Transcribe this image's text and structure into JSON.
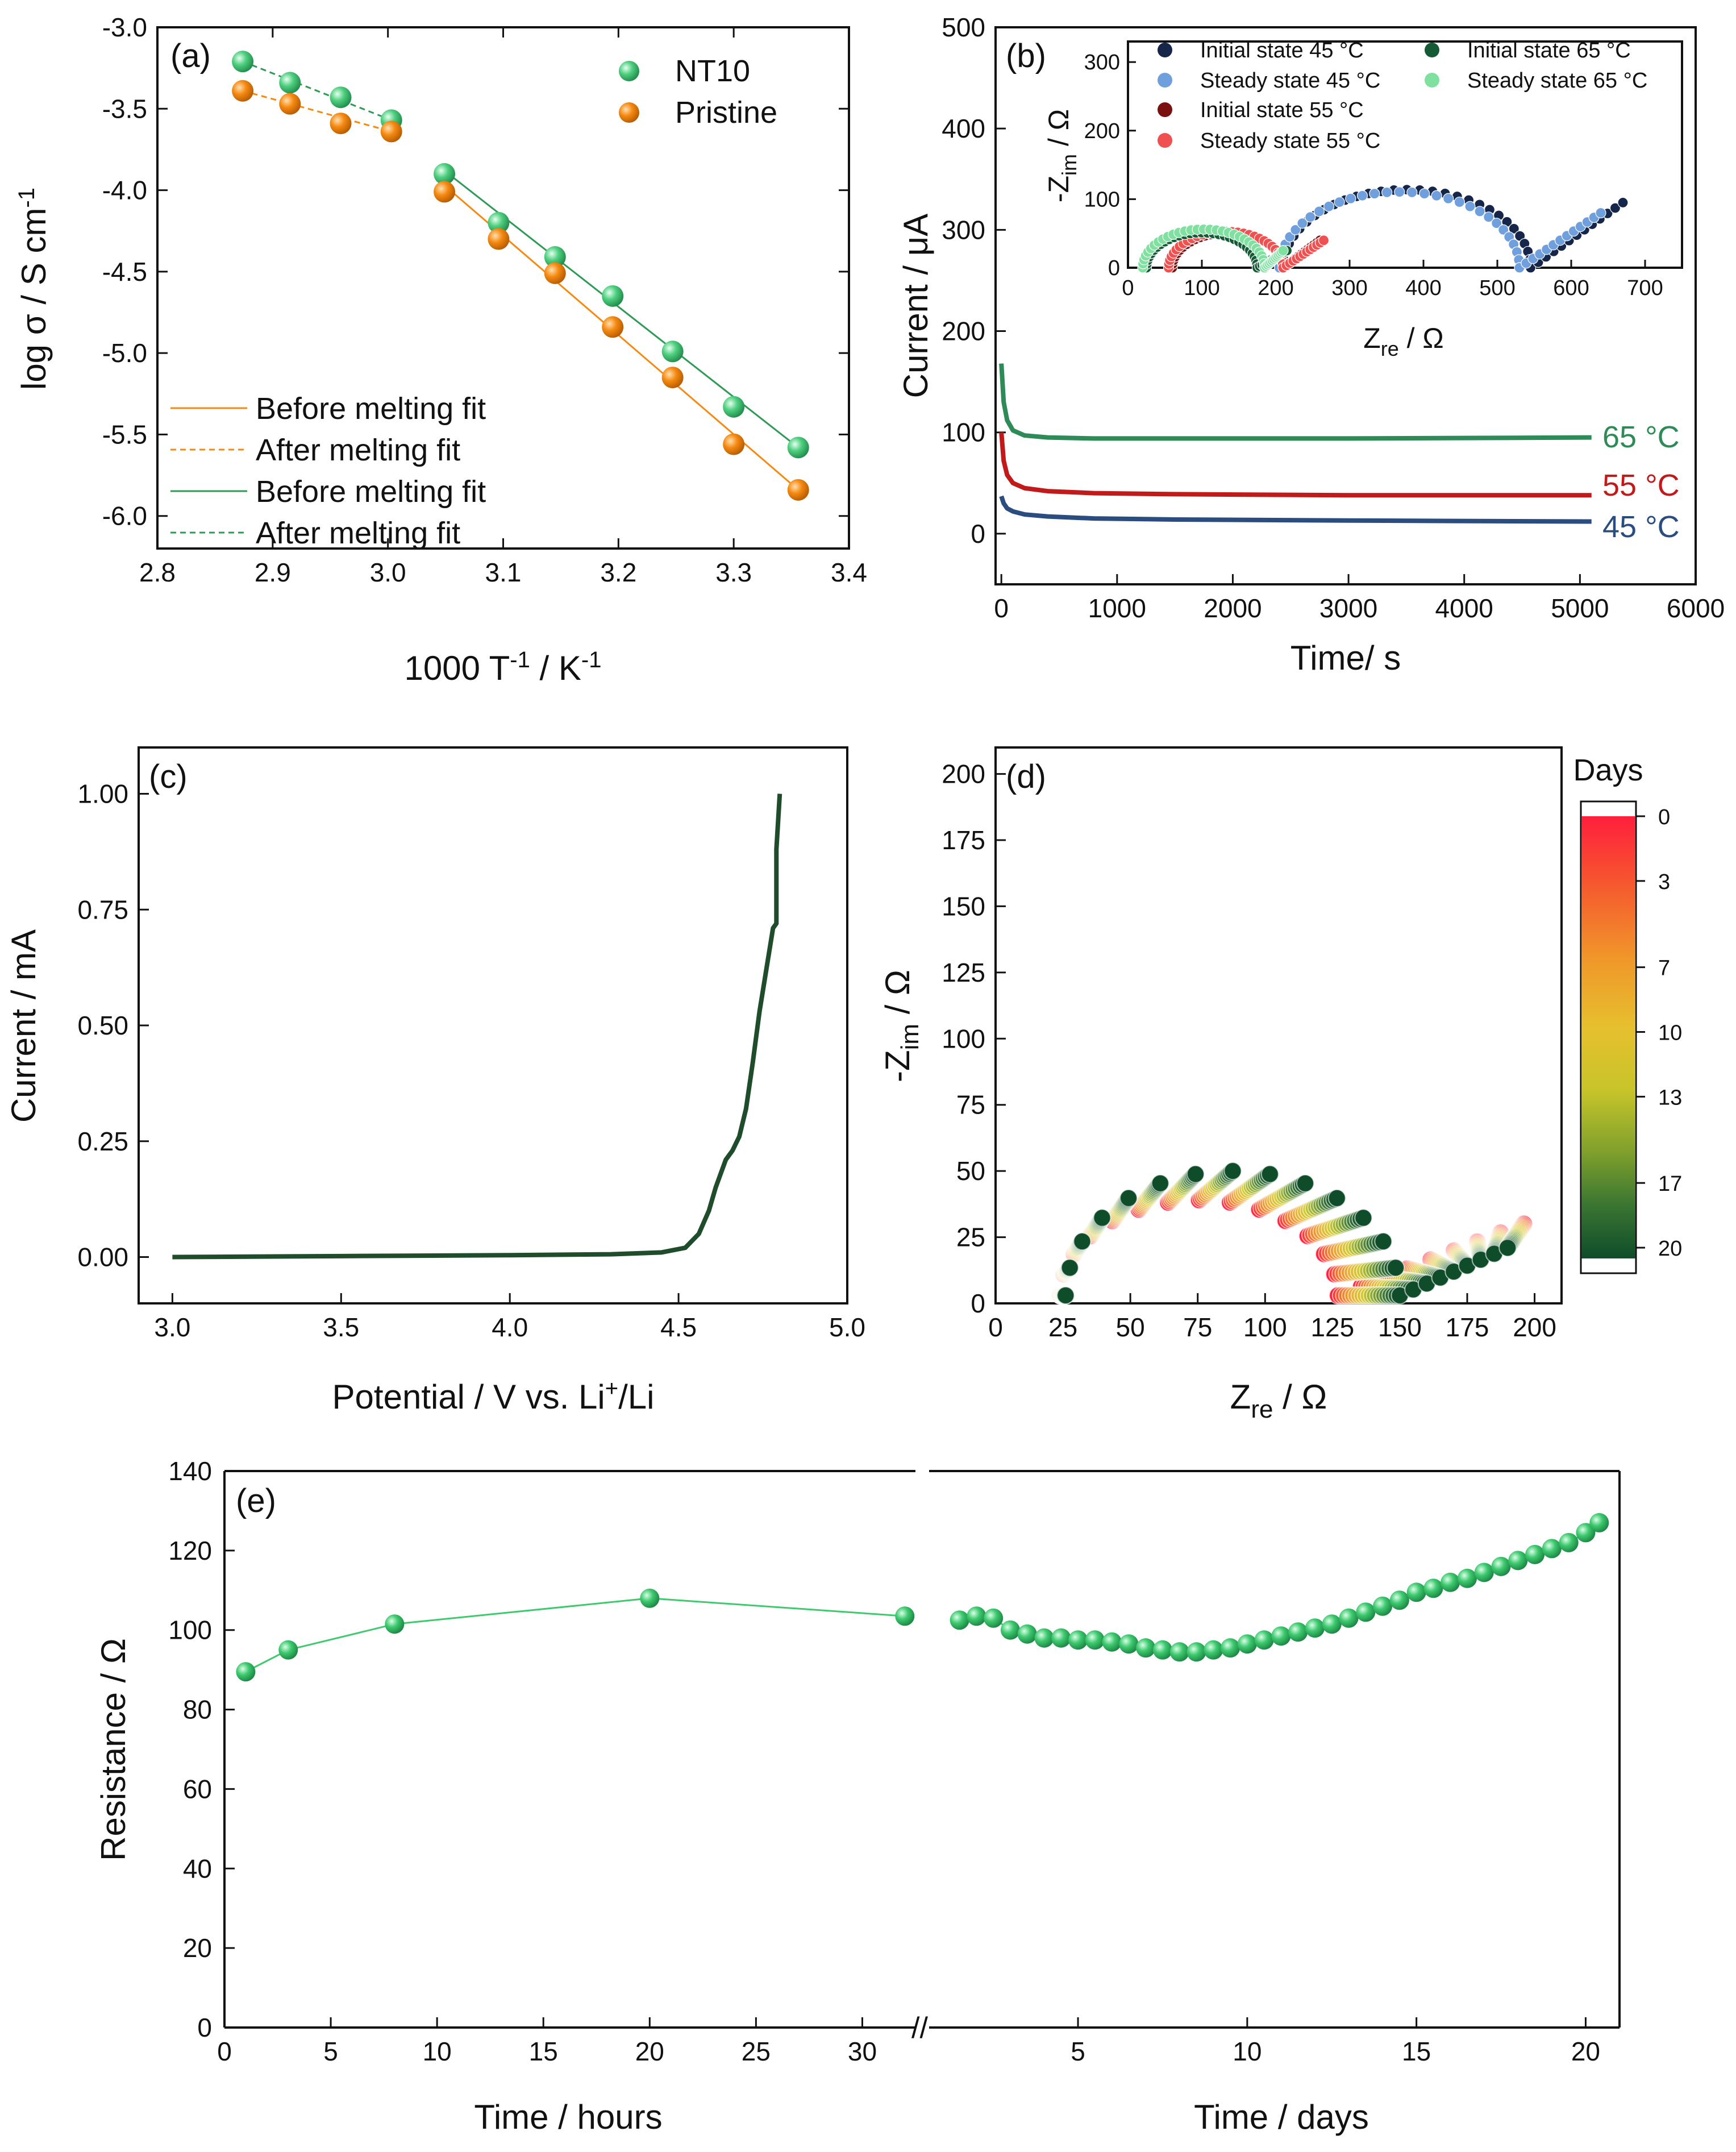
{
  "colors": {
    "nt10": "#4fcf7f",
    "pristine": "#f58a12",
    "c45_initial": "#16264a",
    "c45_steady": "#6f9fdc",
    "c55_initial": "#7a1010",
    "c55_steady": "#ef5050",
    "c65_initial": "#145a34",
    "c65_steady": "#7fe0a0",
    "line45": "#2b4c7e",
    "line55": "#c01a1a",
    "line65": "#2e8b57",
    "lsv": "#1f4d2b",
    "resistance": "#3ec96f"
  },
  "chart_data": [
    {
      "id": "a",
      "panel_label": "(a)",
      "type": "scatter",
      "xlabel": "1000 T",
      "xlabel_sup1": "-1",
      "xlabel_mid": " / K",
      "xlabel_sup2": "-1",
      "ylabel": "log σ / S cm",
      "ylabel_sup": "-1",
      "xlim": [
        2.8,
        3.4
      ],
      "ylim": [
        -6.2,
        -3.0
      ],
      "xticks": [
        "2.8",
        "2.9",
        "3.0",
        "3.1",
        "3.2",
        "3.3",
        "3.4"
      ],
      "yticks": [
        "-3.0",
        "-3.5",
        "-4.0",
        "-4.5",
        "-5.0",
        "-5.5",
        "-6.0"
      ],
      "series": [
        {
          "name": "NT10",
          "color": "#4fcf7f",
          "x": [
            2.874,
            2.915,
            2.959,
            3.003,
            3.049,
            3.096,
            3.145,
            3.195,
            3.247,
            3.3,
            3.356
          ],
          "y": [
            -3.21,
            -3.34,
            -3.43,
            -3.57,
            -3.9,
            -4.2,
            -4.41,
            -4.65,
            -4.99,
            -5.33,
            -5.58
          ]
        },
        {
          "name": "Pristine",
          "color": "#f58a12",
          "x": [
            2.874,
            2.915,
            2.959,
            3.003,
            3.049,
            3.096,
            3.145,
            3.195,
            3.247,
            3.3,
            3.356
          ],
          "y": [
            -3.39,
            -3.47,
            -3.59,
            -3.64,
            -4.01,
            -4.3,
            -4.51,
            -4.84,
            -5.15,
            -5.56,
            -5.84
          ]
        }
      ],
      "fits": [
        {
          "name": "Before melting fit",
          "color": "#f58a12",
          "dash": false,
          "x": [
            3.049,
            3.356
          ],
          "y": [
            -3.97,
            -5.84
          ]
        },
        {
          "name": "After melting fit",
          "color": "#f58a12",
          "dash": true,
          "x": [
            2.874,
            3.003
          ],
          "y": [
            -3.39,
            -3.64
          ]
        },
        {
          "name": "Before melting fit",
          "color": "#2e9a55",
          "dash": false,
          "x": [
            3.049,
            3.356
          ],
          "y": [
            -3.88,
            -5.58
          ]
        },
        {
          "name": "After melting fit",
          "color": "#2e9a55",
          "dash": true,
          "x": [
            2.874,
            3.003
          ],
          "y": [
            -3.21,
            -3.57
          ]
        }
      ]
    },
    {
      "id": "b",
      "panel_label": "(b)",
      "type": "line",
      "xlabel": "Time/ s",
      "ylabel": "Current / μA",
      "xlim": [
        -50,
        6000
      ],
      "ylim": [
        -50,
        500
      ],
      "xticks": [
        "0",
        "1000",
        "2000",
        "3000",
        "4000",
        "5000",
        "6000"
      ],
      "yticks": [
        "0",
        "100",
        "200",
        "300",
        "400",
        "500"
      ],
      "series": [
        {
          "name": "65 °C",
          "color": "#2e8b57",
          "x": [
            0,
            20,
            50,
            100,
            200,
            400,
            800,
            1500,
            3000,
            5100
          ],
          "y": [
            168,
            130,
            112,
            102,
            97,
            95,
            94,
            94,
            94,
            95
          ]
        },
        {
          "name": "55 °C",
          "color": "#c01a1a",
          "x": [
            0,
            20,
            50,
            100,
            200,
            400,
            800,
            1500,
            3000,
            5100
          ],
          "y": [
            100,
            72,
            58,
            50,
            45,
            42,
            40,
            39,
            38,
            38
          ]
        },
        {
          "name": "45 °C",
          "color": "#2b4c7e",
          "x": [
            0,
            20,
            50,
            100,
            200,
            400,
            800,
            1500,
            3000,
            5100
          ],
          "y": [
            37,
            30,
            25,
            22,
            19,
            17,
            15,
            14,
            13,
            12
          ]
        }
      ],
      "inset": {
        "type": "scatter",
        "xlabel": "Z",
        "xlabel_sub": "re",
        "xlabel_tail": " / Ω",
        "ylabel": "-Z",
        "ylabel_sub": "im",
        "ylabel_tail": " / Ω",
        "xlim": [
          0,
          750
        ],
        "ylim": [
          0,
          330
        ],
        "xticks": [
          "0",
          "100",
          "200",
          "300",
          "400",
          "500",
          "600",
          "700"
        ],
        "yticks": [
          "0",
          "100",
          "200",
          "300"
        ],
        "series": [
          {
            "name": "Initial state 45 °C",
            "color": "#16264a",
            "x_start": 210,
            "diameter": 335,
            "tail_end": 670,
            "tail_height": 95
          },
          {
            "name": "Steady state 45 °C",
            "color": "#6f9fdc",
            "x_start": 205,
            "diameter": 325,
            "tail_end": 640,
            "tail_height": 80
          },
          {
            "name": "Initial state 55 °C",
            "color": "#7a1010",
            "x_start": 60,
            "diameter": 150,
            "tail_end": 260,
            "tail_height": 40
          },
          {
            "name": "Steady state 55 °C",
            "color": "#ef5050",
            "x_start": 55,
            "diameter": 155,
            "tail_end": 265,
            "tail_height": 40
          },
          {
            "name": "Initial state 65 °C",
            "color": "#145a34",
            "x_start": 25,
            "diameter": 150,
            "tail_end": 215,
            "tail_height": 25
          },
          {
            "name": "Steady state 65 °C",
            "color": "#7fe0a0",
            "x_start": 20,
            "diameter": 165,
            "tail_end": 210,
            "tail_height": 25
          }
        ]
      }
    },
    {
      "id": "c",
      "panel_label": "(c)",
      "type": "line",
      "xlabel": "Potential / V vs. Li",
      "xlabel_sup": "+",
      "xlabel_tail": "/Li",
      "ylabel": "Current / mA",
      "xlim": [
        2.9,
        5.0
      ],
      "ylim": [
        -0.1,
        1.1
      ],
      "xticks": [
        "3.0",
        "3.5",
        "4.0",
        "4.5",
        "5.0"
      ],
      "yticks": [
        "0.00",
        "0.25",
        "0.50",
        "0.75",
        "1.00"
      ],
      "series": [
        {
          "name": "LSV",
          "color": "#1f4d2b",
          "x": [
            3.0,
            3.5,
            4.0,
            4.3,
            4.45,
            4.52,
            4.56,
            4.59,
            4.61,
            4.63,
            4.64,
            4.66,
            4.68,
            4.7,
            4.72,
            4.74,
            4.76,
            4.78,
            4.79,
            4.79,
            4.8
          ],
          "y": [
            0.0,
            0.002,
            0.004,
            0.006,
            0.01,
            0.02,
            0.05,
            0.1,
            0.15,
            0.19,
            0.21,
            0.23,
            0.26,
            0.32,
            0.42,
            0.53,
            0.62,
            0.71,
            0.72,
            0.88,
            1.0
          ]
        }
      ]
    },
    {
      "id": "d",
      "panel_label": "(d)",
      "type": "scatter",
      "xlabel": "Z",
      "xlabel_sub": "re",
      "xlabel_tail": " / Ω",
      "ylabel": "-Z",
      "ylabel_sub": "im",
      "ylabel_tail": " / Ω",
      "xlim": [
        0,
        210
      ],
      "ylim": [
        0,
        210
      ],
      "xticks": [
        "0",
        "25",
        "50",
        "75",
        "100",
        "125",
        "150",
        "175",
        "200"
      ],
      "yticks": [
        "0",
        "25",
        "50",
        "75",
        "100",
        "125",
        "150",
        "175",
        "200"
      ],
      "colorbar": {
        "title": "Days",
        "ticks": [
          "0",
          "3",
          "7",
          "10",
          "13",
          "17",
          "20"
        ],
        "stops": [
          "#ff1f3c",
          "#f07a28",
          "#e8b030",
          "#d2c82a",
          "#8aa82a",
          "#3f7a32",
          "#0f4d2a"
        ]
      },
      "curves": {
        "day0": {
          "x_start": 24,
          "diameter": 103,
          "peak": 36,
          "tail_end": 196,
          "tail_height": 27
        },
        "day20": {
          "x_start": 26,
          "diameter": 124,
          "peak": 47,
          "tail_end": 190,
          "tail_height": 18
        },
        "count": 20
      }
    },
    {
      "id": "e",
      "panel_label": "(e)",
      "type": "line",
      "ylabel": "Resistance / Ω",
      "ylim": [
        0,
        140
      ],
      "yticks": [
        "0",
        "20",
        "40",
        "60",
        "80",
        "100",
        "120",
        "140"
      ],
      "left": {
        "xlabel": "Time / hours",
        "xlim": [
          0,
          32.5
        ],
        "xticks": [
          "0",
          "5",
          "10",
          "15",
          "20",
          "25",
          "30"
        ],
        "x": [
          1,
          3,
          8,
          20,
          32
        ],
        "y": [
          89.5,
          95,
          101.5,
          108,
          103.5
        ]
      },
      "right": {
        "xlabel": "Time / days",
        "xlim": [
          0.6,
          21
        ],
        "xticks": [
          "5",
          "10",
          "15",
          "20"
        ],
        "x": [
          1.5,
          2.0,
          2.5,
          3.0,
          3.5,
          4.0,
          4.5,
          5.0,
          5.5,
          6.0,
          6.5,
          7.0,
          7.5,
          8.0,
          8.5,
          9.0,
          9.5,
          10.0,
          10.5,
          11.0,
          11.5,
          12.0,
          12.5,
          13.0,
          13.5,
          14.0,
          14.5,
          15.0,
          15.5,
          16.0,
          16.5,
          17.0,
          17.5,
          18.0,
          18.5,
          19.0,
          19.5,
          20.0,
          20.4
        ],
        "y": [
          102.5,
          103.5,
          103,
          100,
          99,
          98,
          98,
          97.5,
          97.5,
          97,
          96.5,
          95.5,
          95,
          94.5,
          94.5,
          95,
          95.5,
          96.5,
          97.5,
          98.5,
          99.5,
          100.5,
          101.5,
          103,
          104.5,
          106,
          107.5,
          109.5,
          110.5,
          112,
          113,
          114.5,
          116,
          117.5,
          119,
          120.5,
          122,
          124.5,
          127
        ]
      },
      "break_mark": "//",
      "color": "#3ec96f"
    }
  ]
}
